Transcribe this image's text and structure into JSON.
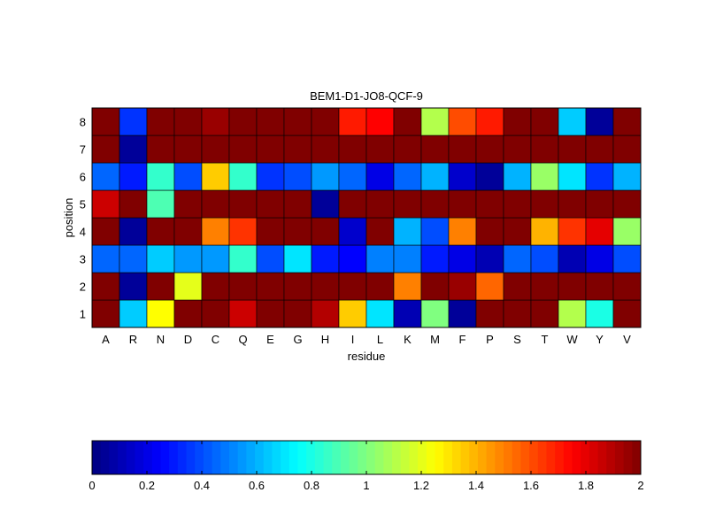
{
  "chart_data": {
    "type": "heatmap",
    "title": "BEM1-D1-JO8-QCF-9",
    "xlabel": "residue",
    "ylabel": "position",
    "x_categories": [
      "A",
      "R",
      "N",
      "D",
      "C",
      "Q",
      "E",
      "G",
      "H",
      "I",
      "L",
      "K",
      "M",
      "F",
      "P",
      "S",
      "T",
      "W",
      "Y",
      "V"
    ],
    "y_categories": [
      "1",
      "2",
      "3",
      "4",
      "5",
      "6",
      "7",
      "8"
    ],
    "clim": [
      0,
      2
    ],
    "colormap": "jet",
    "colorbar_ticks": [
      "0",
      "0.2",
      "0.4",
      "0.6",
      "0.8",
      "1",
      "1.2",
      "1.4",
      "1.6",
      "1.8",
      "2"
    ],
    "values": [
      [
        2.0,
        0.65,
        1.25,
        2.0,
        2.0,
        1.85,
        2.0,
        2.0,
        1.9,
        1.35,
        0.7,
        0.1,
        1.0,
        0.05,
        2.0,
        2.0,
        2.0,
        1.1,
        0.8,
        2.0
      ],
      [
        2.0,
        0.05,
        2.0,
        1.2,
        2.0,
        2.0,
        2.0,
        2.0,
        2.0,
        2.0,
        2.0,
        1.5,
        2.0,
        1.95,
        1.55,
        2.0,
        2.0,
        2.0,
        2.0,
        2.0
      ],
      [
        0.45,
        0.45,
        0.65,
        0.55,
        0.55,
        0.85,
        0.4,
        0.7,
        0.3,
        0.25,
        0.5,
        0.5,
        0.3,
        0.2,
        0.1,
        0.45,
        0.4,
        0.1,
        0.2,
        0.4
      ],
      [
        2.0,
        0.05,
        2.0,
        2.0,
        1.5,
        1.65,
        2.0,
        2.0,
        2.0,
        0.15,
        2.0,
        0.6,
        0.4,
        1.5,
        2.0,
        2.0,
        1.4,
        1.65,
        1.8,
        1.05
      ],
      [
        1.85,
        2.0,
        0.9,
        2.0,
        2.0,
        2.0,
        2.0,
        2.0,
        0.05,
        2.0,
        2.0,
        2.0,
        2.0,
        2.0,
        2.0,
        2.0,
        2.0,
        2.0,
        2.0,
        2.0
      ],
      [
        0.45,
        0.3,
        0.85,
        0.4,
        1.35,
        0.85,
        0.35,
        0.4,
        0.55,
        0.45,
        0.2,
        0.45,
        0.6,
        0.15,
        0.05,
        0.6,
        1.05,
        0.7,
        0.35,
        0.6
      ],
      [
        2.0,
        0.05,
        2.0,
        2.0,
        2.0,
        2.0,
        2.0,
        2.0,
        2.0,
        2.0,
        2.0,
        2.0,
        2.0,
        2.0,
        2.0,
        2.0,
        2.0,
        2.0,
        2.0,
        2.0
      ],
      [
        2.0,
        0.35,
        2.0,
        2.0,
        1.95,
        2.0,
        2.0,
        2.0,
        2.0,
        1.7,
        1.75,
        2.0,
        1.1,
        1.6,
        1.7,
        2.0,
        2.0,
        0.65,
        0.05,
        2.0
      ]
    ]
  }
}
